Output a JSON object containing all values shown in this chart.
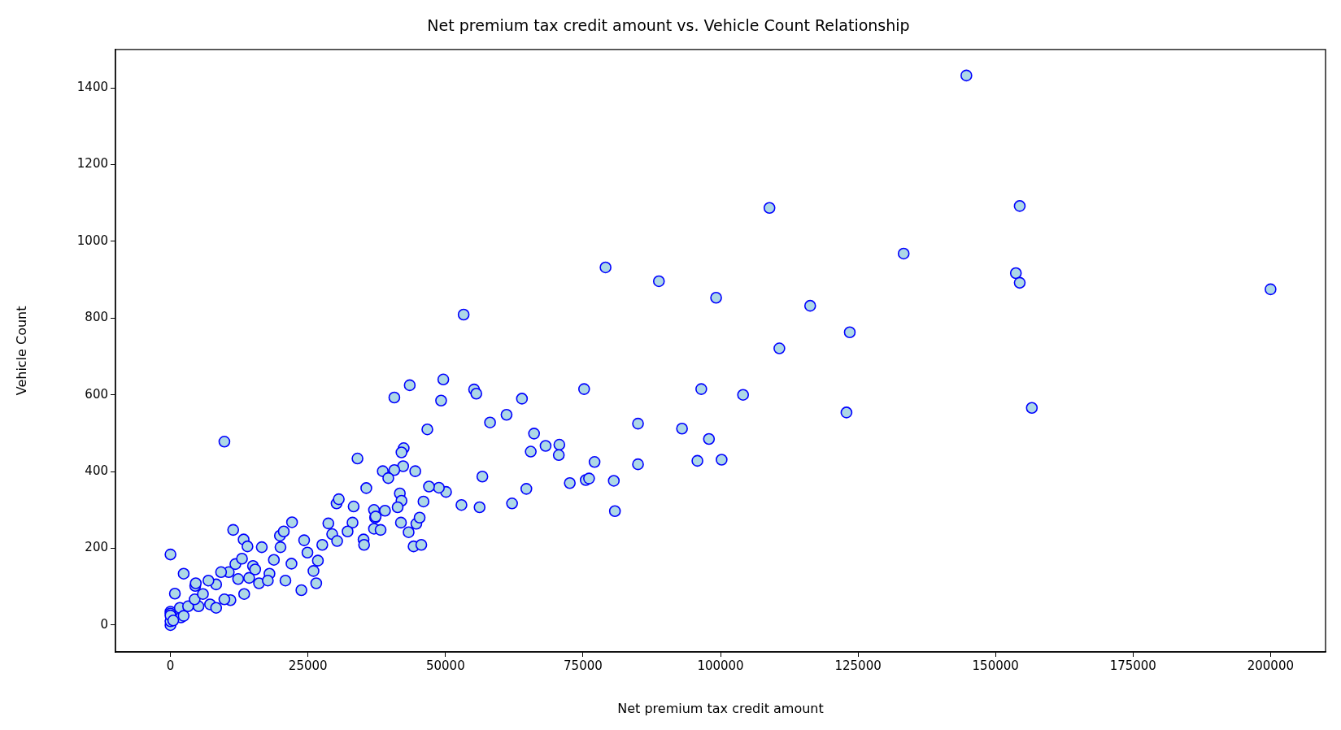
{
  "chart_data": {
    "type": "scatter",
    "title": "Net premium tax credit amount vs. Vehicle Count Relationship",
    "xlabel": "Net premium tax credit amount",
    "ylabel": "Vehicle Count",
    "x": [
      144700,
      108900,
      154400,
      133300,
      79100,
      88800,
      153700,
      154400,
      200000,
      99200,
      116300,
      53300,
      123500,
      110700,
      49600,
      55200,
      55600,
      75200,
      96500,
      63900,
      104100,
      58100,
      61100,
      122900,
      156600,
      85000,
      93000,
      66100,
      97900,
      65500,
      68200,
      70700,
      70600,
      77100,
      85000,
      95800,
      100200,
      43500,
      40700,
      49200,
      46700,
      72600,
      75500,
      76100,
      80600,
      80800,
      64700,
      62100,
      56700,
      56200,
      52900,
      50100,
      48800,
      47000,
      34000,
      42400,
      42000,
      42300,
      40700,
      38600,
      39600,
      44500,
      35600,
      30200,
      30600,
      33300,
      41700,
      42000,
      41300,
      46000,
      33100,
      41900,
      44700,
      45300,
      37200,
      39000,
      37000,
      43300,
      44200,
      45600,
      37300,
      37000,
      38200,
      35100,
      35200,
      32200,
      9800,
      0,
      11400,
      13300,
      14000,
      16600,
      2400,
      4500,
      800,
      22100,
      19900,
      20600,
      20000,
      24300,
      18800,
      15000,
      18000,
      22000,
      20900,
      23800,
      24900,
      26500,
      26000,
      26800,
      27600,
      28700,
      29400,
      30300,
      10600,
      12300,
      8300,
      7200,
      8300,
      10900,
      13400,
      16100,
      5100,
      1900,
      0,
      1700,
      3200,
      2400,
      6900,
      9200,
      11800,
      13000,
      4600,
      4400,
      9800,
      5900,
      0,
      14300,
      17700,
      15400,
      0,
      0,
      0,
      500
    ],
    "values": [
      1432,
      1087,
      1092,
      968,
      932,
      896,
      917,
      892,
      875,
      853,
      832,
      809,
      763,
      721,
      640,
      614,
      603,
      615,
      615,
      590,
      600,
      528,
      548,
      554,
      566,
      525,
      512,
      499,
      485,
      452,
      467,
      470,
      443,
      425,
      419,
      428,
      431,
      625,
      593,
      585,
      510,
      370,
      378,
      382,
      376,
      297,
      355,
      317,
      387,
      307,
      313,
      347,
      358,
      361,
      434,
      461,
      450,
      414,
      404,
      401,
      383,
      401,
      357,
      317,
      328,
      309,
      343,
      324,
      307,
      322,
      267,
      267,
      264,
      280,
      280,
      298,
      300,
      242,
      205,
      209,
      283,
      251,
      248,
      223,
      209,
      244,
      478,
      184,
      248,
      223,
      205,
      203,
      134,
      102,
      82,
      268,
      233,
      244,
      203,
      221,
      170,
      154,
      134,
      160,
      116,
      91,
      189,
      109,
      141,
      168,
      209,
      265,
      237,
      219,
      138,
      120,
      106,
      54,
      45,
      65,
      81,
      109,
      49,
      20,
      35,
      45,
      49,
      24,
      116,
      138,
      159,
      173,
      109,
      67,
      67,
      81,
      30,
      123,
      116,
      145,
      0,
      10,
      25,
      12
    ],
    "color": "#add8e6",
    "marker": "circle",
    "grid": false,
    "legend": false,
    "xlim": [
      -10000,
      210000
    ],
    "ylim": [
      -70,
      1500
    ],
    "xticks": [
      0,
      25000,
      50000,
      75000,
      100000,
      125000,
      150000,
      175000,
      200000
    ],
    "yticks": [
      0,
      200,
      400,
      600,
      800,
      1000,
      1200,
      1400
    ]
  }
}
